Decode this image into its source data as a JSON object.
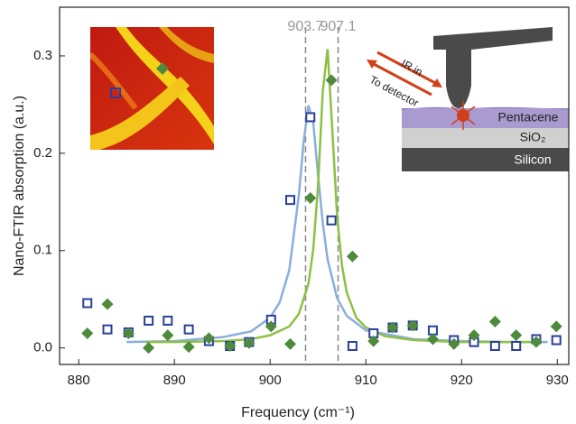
{
  "chart_data": {
    "type": "scatter",
    "xlabel": "Frequency (cm⁻¹)",
    "ylabel": "Nano-FTIR absorption (a.u.)",
    "xlim": [
      878,
      931.2
    ],
    "ylim": [
      -0.017,
      0.35
    ],
    "xticks": [
      880,
      890,
      900,
      910,
      920,
      930
    ],
    "yticks": [
      {
        "value": 0,
        "label": "0.0"
      },
      0.1,
      0.2,
      0.3
    ],
    "vlines": [
      903.7,
      907.1
    ],
    "series": [
      {
        "marker": "line",
        "color": "#8aaede",
        "x": [
          885,
          890,
          895,
          898,
          900,
          901,
          902,
          903,
          903.5,
          904,
          904.5,
          905,
          905.5,
          906,
          907,
          908,
          910,
          915,
          920,
          925,
          929
        ],
        "values": [
          0.006,
          0.007,
          0.011,
          0.017,
          0.031,
          0.047,
          0.08,
          0.157,
          0.212,
          0.249,
          0.232,
          0.178,
          0.128,
          0.091,
          0.051,
          0.033,
          0.018,
          0.009,
          0.007,
          0.006,
          0.006
        ]
      },
      {
        "marker": "line",
        "color": "#8dc043",
        "x": [
          887,
          890,
          895,
          898,
          900,
          902,
          903,
          904,
          904.5,
          905,
          905.5,
          906,
          906.5,
          907,
          907.5,
          908,
          909,
          910,
          912,
          915,
          920,
          928
        ],
        "values": [
          0.006,
          0.006,
          0.007,
          0.009,
          0.013,
          0.022,
          0.035,
          0.066,
          0.101,
          0.166,
          0.264,
          0.307,
          0.223,
          0.135,
          0.085,
          0.057,
          0.031,
          0.021,
          0.012,
          0.008,
          0.006,
          0.006
        ]
      },
      {
        "marker": "square",
        "color": "#2a3f9a",
        "x": [
          880.9,
          883.0,
          885.2,
          887.3,
          889.3,
          891.5,
          893.6,
          895.8,
          897.8,
          900.1,
          902.1,
          904.2,
          906.4,
          908.6,
          910.8,
          912.8,
          914.9,
          917.0,
          919.2,
          921.3,
          923.5,
          925.7,
          927.8,
          929.9
        ],
        "values": [
          0.046,
          0.019,
          0.016,
          0.028,
          0.028,
          0.019,
          0.007,
          0.002,
          0.006,
          0.029,
          0.152,
          0.237,
          0.131,
          0.002,
          0.015,
          0.021,
          0.023,
          0.018,
          0.008,
          0.006,
          0.002,
          0.002,
          0.009,
          0.008
        ]
      },
      {
        "marker": "diamond",
        "color": "#4e8a3c",
        "x": [
          880.9,
          883.0,
          885.2,
          887.3,
          889.3,
          891.5,
          893.6,
          895.8,
          897.8,
          900.1,
          902.1,
          904.2,
          906.4,
          908.6,
          910.8,
          912.8,
          914.9,
          917.0,
          919.2,
          921.3,
          923.5,
          925.7,
          927.8,
          929.9
        ],
        "values": [
          0.015,
          0.045,
          0.015,
          0.0,
          0.013,
          0.001,
          0.01,
          0.002,
          0.005,
          0.022,
          0.004,
          0.154,
          0.275,
          0.094,
          0.007,
          0.021,
          0.023,
          0.009,
          0.004,
          0.013,
          0.027,
          0.013,
          0.006,
          0.022
        ]
      }
    ],
    "annotations": {
      "ir_in": "IR in",
      "to_detector": "To detector",
      "pentacene": "Pentacene",
      "sio2": "SiO₂",
      "silicon": "Silicon"
    }
  }
}
